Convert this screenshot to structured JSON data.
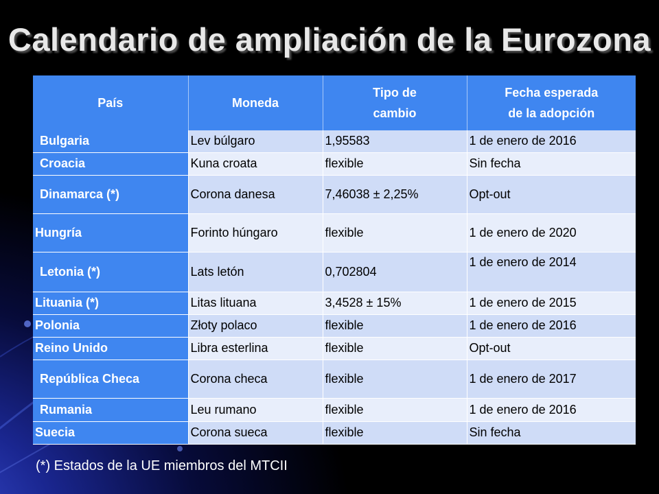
{
  "slide": {
    "title": "Calendario de ampliación de la Eurozona",
    "footnote": "(*) Estados de la UE miembros del MTCII"
  },
  "table": {
    "headers": {
      "country": "País",
      "currency": "Moneda",
      "rate_line1": "Tipo de",
      "rate_line2": "cambio",
      "date_line1": "Fecha esperada",
      "date_line2": "de la adopción"
    },
    "rows": [
      {
        "country": "Bulgaria",
        "currency": "Lev búlgaro",
        "rate": "1,95583",
        "date": "1 de enero de 2016"
      },
      {
        "country": "Croacia",
        "currency": "Kuna croata",
        "rate": "flexible",
        "date": "Sin fecha"
      },
      {
        "country": "Dinamarca (*)",
        "currency": "Corona danesa",
        "rate": "7,46038 ± 2,25%",
        "date": "Opt-out"
      },
      {
        "country": "Hungría",
        "currency": "Forinto húngaro",
        "rate": "flexible",
        "date": "1 de enero de 2020"
      },
      {
        "country": "Letonia (*)",
        "currency": "Lats letón",
        "rate": "0,702804",
        "date": "1 de enero de 2014"
      },
      {
        "country": "Lituania (*)",
        "currency": "Litas lituana",
        "rate": "3,4528 ± 15%",
        "date": "1 de enero de 2015"
      },
      {
        "country": "Polonia",
        "currency": "Złoty polaco",
        "rate": "flexible",
        "date": "1 de enero de 2016"
      },
      {
        "country": "Reino Unido",
        "currency": "Libra esterlina",
        "rate": "flexible",
        "date": "Opt-out"
      },
      {
        "country": "República Checa",
        "currency": "Corona checa",
        "rate": "flexible",
        "date": "1 de enero de 2017"
      },
      {
        "country": "Rumania",
        "currency": "Leu rumano",
        "rate": "flexible",
        "date": "1 de enero de 2016"
      },
      {
        "country": "Suecia",
        "currency": "Corona sueca",
        "rate": "flexible",
        "date": "Sin fecha"
      }
    ]
  }
}
